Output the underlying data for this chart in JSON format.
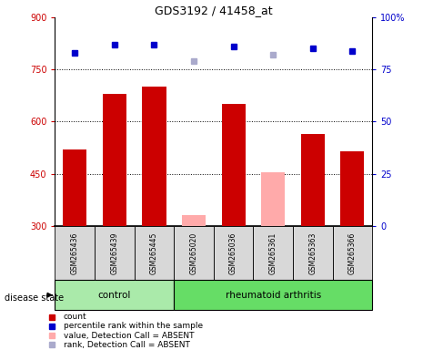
{
  "title": "GDS3192 / 41458_at",
  "samples": [
    "GSM265436",
    "GSM265439",
    "GSM265445",
    "GSM265020",
    "GSM265036",
    "GSM265361",
    "GSM265363",
    "GSM265366"
  ],
  "bar_values": [
    520,
    680,
    700,
    330,
    650,
    455,
    565,
    515
  ],
  "bar_absent": [
    false,
    false,
    false,
    true,
    false,
    true,
    false,
    false
  ],
  "rank_values": [
    83,
    87,
    87,
    79,
    86,
    82,
    85,
    84
  ],
  "rank_absent": [
    false,
    false,
    false,
    true,
    false,
    true,
    false,
    false
  ],
  "y_min": 300,
  "y_max": 900,
  "y_ticks": [
    300,
    450,
    600,
    750,
    900
  ],
  "y2_ticks": [
    0,
    25,
    50,
    75,
    100
  ],
  "bar_color_present": "#cc0000",
  "bar_color_absent": "#ffaaaa",
  "rank_color_present": "#0000cc",
  "rank_color_absent": "#aaaacc",
  "control_label": "control",
  "ra_label": "rheumatoid arthritis",
  "disease_state_label": "disease state",
  "ctrl_green": "#aaeaaa",
  "ra_green": "#66dd66",
  "sample_grey": "#d8d8d8",
  "legend_entries": [
    {
      "label": "count",
      "color": "#cc0000"
    },
    {
      "label": "percentile rank within the sample",
      "color": "#0000cc"
    },
    {
      "label": "value, Detection Call = ABSENT",
      "color": "#ffaaaa"
    },
    {
      "label": "rank, Detection Call = ABSENT",
      "color": "#aaaacc"
    }
  ],
  "bar_width": 0.6
}
